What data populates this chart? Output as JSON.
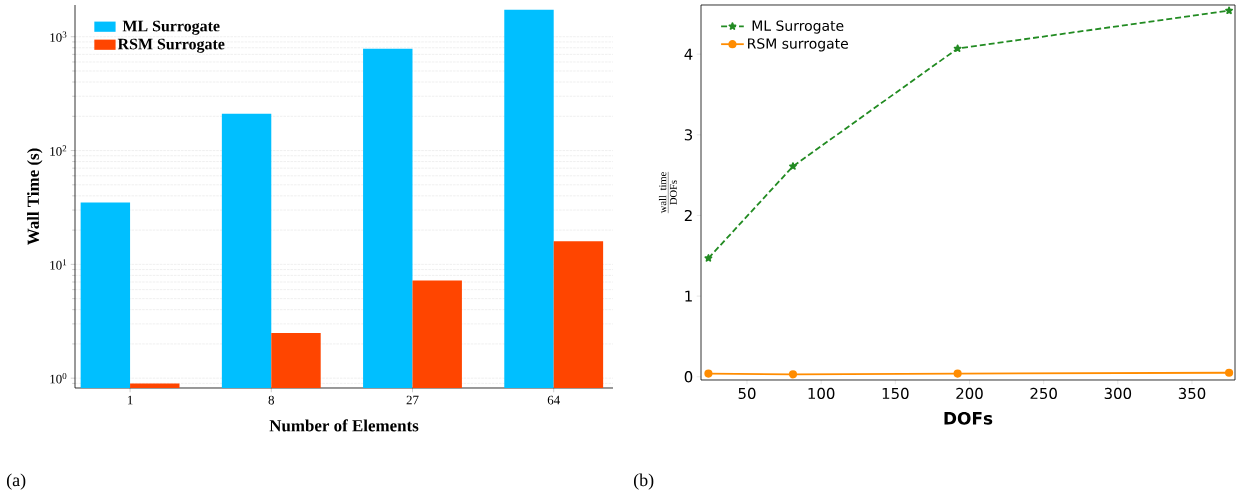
{
  "chart_data": [
    {
      "type": "bar",
      "xlabel": "Number of Elements",
      "ylabel": "Wall Time (s)",
      "categories": [
        "1",
        "8",
        "27",
        "64"
      ],
      "series": [
        {
          "name": "ML Surrogate",
          "color": "#00bfff",
          "values": [
            35,
            211,
            785,
            1730
          ]
        },
        {
          "name": "RSM Surrogate",
          "color": "#ff4500",
          "values": [
            0.9,
            2.5,
            7.2,
            16
          ]
        }
      ],
      "log": true,
      "ylim": [
        0.82,
        1900
      ],
      "yticks": [
        {
          "value": 1,
          "label": "10$^{0}$"
        },
        {
          "value": 10,
          "label": "10$^{1}$"
        },
        {
          "value": 100,
          "label": "10$^{2}$"
        },
        {
          "value": 1000,
          "label": "10$^{3}$"
        }
      ],
      "grid": "y",
      "legend": "top left",
      "annotations": [
        "(a)"
      ]
    },
    {
      "type": "line",
      "xlabel": "DOFs",
      "ylabel": "\\frac{\\mathrm{wall\\ time}}{\\mathrm{DOFs}}",
      "x": [
        24,
        81,
        192,
        375
      ],
      "series": [
        {
          "name": "ML Surrogate",
          "color": "#228b22",
          "values": [
            1.47,
            2.61,
            4.07,
            4.54
          ],
          "marker": "star",
          "line_style": "dashed"
        },
        {
          "name": "RSM surrogate",
          "color": "#ff8c00",
          "values": [
            0.04,
            0.03,
            0.04,
            0.05
          ],
          "marker": "circle",
          "line_style": "solid"
        }
      ],
      "xlim": [
        19,
        379
      ],
      "xticks": [
        50,
        100,
        150,
        200,
        250,
        300,
        350
      ],
      "ylim": [
        -0.04,
        4.61
      ],
      "yticks": [
        0,
        1,
        2,
        3,
        4
      ],
      "legend": "top left",
      "annotations": [
        "(b)"
      ]
    }
  ]
}
